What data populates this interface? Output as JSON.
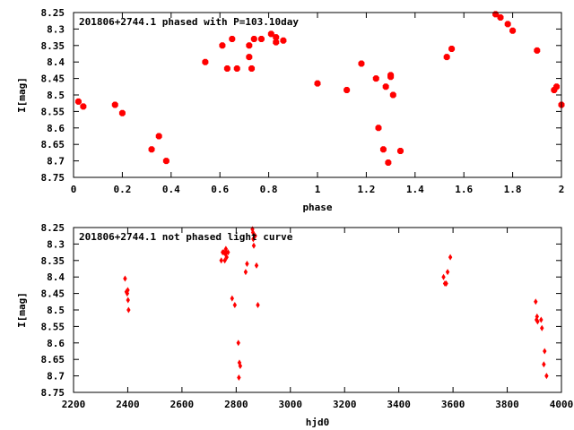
{
  "chart_data": [
    {
      "type": "scatter",
      "title": "201806+2744.1 phased with P=103.10day",
      "xlabel": "phase",
      "ylabel": "I[mag]",
      "xlim": [
        0,
        2
      ],
      "ylim": [
        8.25,
        8.75
      ],
      "y_inverted": true,
      "grid": false,
      "marker": "filled-square",
      "color": "#ff0000",
      "x_ticks": [
        "0",
        "0.2",
        "0.4",
        "0.6",
        "0.8",
        "1",
        "1.2",
        "1.4",
        "1.6",
        "1.8",
        "2"
      ],
      "y_ticks": [
        "8.25",
        "8.3",
        "8.35",
        "8.4",
        "8.45",
        "8.5",
        "8.55",
        "8.6",
        "8.65",
        "8.7",
        "8.75"
      ],
      "x": [
        0.02,
        0.04,
        0.17,
        0.2,
        0.32,
        0.35,
        0.38,
        0.54,
        0.61,
        0.63,
        0.65,
        0.67,
        0.72,
        0.72,
        0.73,
        0.74,
        0.77,
        0.81,
        0.83,
        0.83,
        0.86,
        1.0,
        1.12,
        1.18,
        1.24,
        1.25,
        1.27,
        1.28,
        1.29,
        1.3,
        1.3,
        1.31,
        1.34,
        1.53,
        1.55,
        1.73,
        1.75,
        1.78,
        1.8,
        1.9,
        1.97,
        1.98,
        2.0
      ],
      "y": [
        8.52,
        8.535,
        8.53,
        8.555,
        8.665,
        8.625,
        8.7,
        8.4,
        8.35,
        8.42,
        8.33,
        8.42,
        8.385,
        8.35,
        8.42,
        8.33,
        8.33,
        8.315,
        8.34,
        8.325,
        8.335,
        8.465,
        8.485,
        8.405,
        8.45,
        8.6,
        8.665,
        8.475,
        8.705,
        8.445,
        8.44,
        8.5,
        8.67,
        8.385,
        8.36,
        8.255,
        8.265,
        8.285,
        8.305,
        8.365,
        8.485,
        8.475,
        8.53
      ]
    },
    {
      "type": "scatter",
      "title": "201806+2744.1 not phased light curve",
      "xlabel": "hjd0",
      "ylabel": "I[mag]",
      "xlim": [
        2200,
        4000
      ],
      "ylim": [
        8.25,
        8.75
      ],
      "y_inverted": true,
      "grid": false,
      "marker": "filled-diamond",
      "color": "#ff0000",
      "x_ticks": [
        "2200",
        "2400",
        "2600",
        "2800",
        "3000",
        "3200",
        "3400",
        "3600",
        "3800",
        "4000"
      ],
      "y_ticks": [
        "8.25",
        "8.3",
        "8.35",
        "8.4",
        "8.45",
        "8.5",
        "8.55",
        "8.6",
        "8.65",
        "8.7",
        "8.75"
      ],
      "x": [
        2390,
        2395,
        2398,
        2400,
        2401,
        2403,
        2745,
        2750,
        2755,
        2758,
        2760,
        2762,
        2763,
        2765,
        2770,
        2785,
        2795,
        2808,
        2810,
        2812,
        2815,
        2835,
        2840,
        2860,
        2862,
        2863,
        2865,
        2870,
        2875,
        2880,
        3565,
        3570,
        3575,
        3580,
        3590,
        3905,
        3908,
        3910,
        3912,
        3925,
        3928,
        3935,
        3938,
        3945
      ],
      "y": [
        8.405,
        8.445,
        8.45,
        8.44,
        8.47,
        8.5,
        8.35,
        8.325,
        8.325,
        8.35,
        8.33,
        8.315,
        8.325,
        8.34,
        8.325,
        8.465,
        8.485,
        8.6,
        8.705,
        8.66,
        8.67,
        8.385,
        8.36,
        8.255,
        8.265,
        8.285,
        8.305,
        8.275,
        8.365,
        8.485,
        8.4,
        8.42,
        8.42,
        8.385,
        8.34,
        8.475,
        8.53,
        8.52,
        8.535,
        8.53,
        8.555,
        8.665,
        8.625,
        8.7
      ]
    }
  ]
}
